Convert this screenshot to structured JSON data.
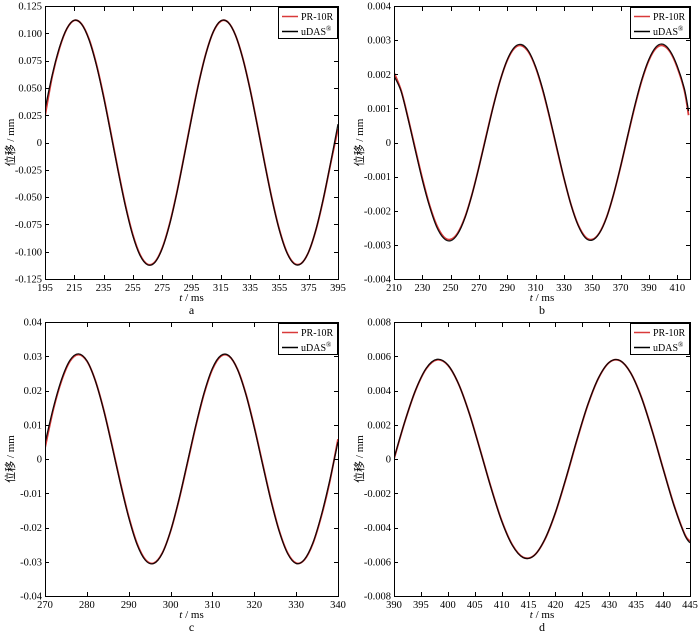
{
  "chart_data": [
    {
      "panel_label": "a",
      "type": "line",
      "xlabel": "t / ms",
      "ylabel": "位移 / mm",
      "xlim": [
        195,
        395
      ],
      "ylim": [
        -0.125,
        0.125
      ],
      "xticks": [
        195,
        215,
        235,
        255,
        275,
        295,
        315,
        335,
        355,
        375,
        395
      ],
      "xtick_labels": [
        "195",
        "215",
        "235",
        "255",
        "275",
        "295",
        "315",
        "335",
        "355",
        "375",
        "395"
      ],
      "yticks": [
        -0.125,
        -0.1,
        -0.075,
        -0.05,
        -0.025,
        0,
        0.025,
        0.05,
        0.075,
        0.1,
        0.125
      ],
      "ytick_labels": [
        "-0.125",
        "-0.100",
        "-0.075",
        "-0.050",
        "-0.025",
        "0",
        "0.025",
        "0.050",
        "0.075",
        "0.100",
        "0.125"
      ],
      "grid": false,
      "legend": "top-right",
      "x": [
        195,
        200,
        205,
        210,
        215,
        220,
        225,
        230,
        235,
        240,
        245,
        250,
        255,
        260,
        265,
        270,
        275,
        280,
        285,
        290,
        295,
        300,
        305,
        310,
        315,
        320,
        325,
        330,
        335,
        340,
        345,
        350,
        355,
        360,
        365,
        370,
        375,
        380,
        385,
        390,
        395
      ],
      "series": [
        {
          "name": "PR-10R",
          "color": "#d93a3a",
          "y": [
            0.024,
            0.061,
            0.0868,
            0.1043,
            0.1118,
            0.1085,
            0.0949,
            0.0721,
            0.0425,
            0.0087,
            -0.0259,
            -0.058,
            -0.0846,
            -0.103,
            -0.1115,
            -0.1094,
            -0.0967,
            -0.0747,
            -0.0457,
            -0.0122,
            0.0225,
            0.055,
            0.0822,
            0.1016,
            0.1111,
            0.1101,
            0.0984,
            0.0773,
            0.0488,
            0.0156,
            -0.0191,
            -0.0519,
            -0.0798,
            -0.1001,
            -0.1106,
            -0.1106,
            -0.1001,
            -0.0798,
            -0.0519,
            -0.0191,
            0.0125
          ]
        },
        {
          "name": "uDAS®",
          "color": "#000000",
          "y": [
            0.0305,
            0.0622,
            0.0876,
            0.1046,
            0.112,
            0.1083,
            0.0942,
            0.0712,
            0.0414,
            0.0076,
            -0.0268,
            -0.059,
            -0.0856,
            -0.1038,
            -0.112,
            -0.1098,
            -0.0972,
            -0.0754,
            -0.0462,
            -0.0126,
            0.0218,
            0.0546,
            0.082,
            0.1018,
            0.1114,
            0.11,
            0.0982,
            0.0768,
            0.0482,
            0.0148,
            -0.0198,
            -0.0526,
            -0.0804,
            -0.1006,
            -0.111,
            -0.1108,
            -0.1,
            -0.0794,
            -0.0512,
            -0.0182,
            0.0168
          ]
        }
      ]
    },
    {
      "panel_label": "b",
      "type": "line",
      "xlabel": "t / ms",
      "ylabel": "位移 / mm",
      "xlim": [
        210,
        419
      ],
      "ylim": [
        -0.004,
        0.004
      ],
      "xticks": [
        210,
        230,
        250,
        270,
        290,
        310,
        330,
        350,
        370,
        390,
        410
      ],
      "xtick_labels": [
        "210",
        "230",
        "250",
        "270",
        "290",
        "310",
        "330",
        "350",
        "370",
        "390",
        "410"
      ],
      "yticks": [
        -0.004,
        -0.003,
        -0.002,
        -0.001,
        0,
        0.001,
        0.002,
        0.003,
        0.004
      ],
      "ytick_labels": [
        "-0.004",
        "-0.003",
        "-0.002",
        "-0.001",
        "0",
        "0.001",
        "0.002",
        "0.003",
        "0.004"
      ],
      "grid": false,
      "legend": "top-right",
      "x": [
        210,
        215,
        220,
        225,
        230,
        235,
        240,
        245,
        250,
        255,
        260,
        265,
        270,
        275,
        280,
        285,
        290,
        295,
        300,
        305,
        310,
        315,
        320,
        325,
        330,
        335,
        340,
        345,
        350,
        355,
        360,
        365,
        370,
        375,
        380,
        385,
        390,
        395,
        400,
        405,
        410,
        415,
        418
      ],
      "series": [
        {
          "name": "PR-10R",
          "color": "#d93a3a",
          "y": [
            0.00205,
            0.00153,
            0.00071,
            -0.00018,
            -0.00105,
            -0.00182,
            -0.00241,
            -0.00276,
            -0.00284,
            -0.00265,
            -0.0022,
            -0.00153,
            -0.00071,
            0.00018,
            0.00105,
            0.00182,
            0.00241,
            0.00276,
            0.00284,
            0.00265,
            0.0022,
            0.00153,
            0.00071,
            -0.00018,
            -0.00105,
            -0.00182,
            -0.00241,
            -0.00276,
            -0.00284,
            -0.00265,
            -0.0022,
            -0.00153,
            -0.00071,
            0.00018,
            0.00105,
            0.00182,
            0.00241,
            0.00276,
            0.00284,
            0.00265,
            0.0022,
            0.00153,
            0.0008
          ]
        },
        {
          "name": "uDAS®",
          "color": "#000000",
          "y": [
            0.00195,
            0.0015,
            0.00068,
            -0.00022,
            -0.0011,
            -0.00186,
            -0.00246,
            -0.0028,
            -0.00288,
            -0.00268,
            -0.00222,
            -0.00154,
            -0.00072,
            0.00016,
            0.00104,
            0.00182,
            0.00243,
            0.00279,
            0.00287,
            0.00268,
            0.00222,
            0.00156,
            0.00073,
            -0.00016,
            -0.00104,
            -0.00183,
            -0.00243,
            -0.00279,
            -0.00286,
            -0.00266,
            -0.00221,
            -0.00152,
            -0.0007,
            0.0002,
            0.00108,
            0.00185,
            0.00244,
            0.0028,
            0.00288,
            0.00268,
            0.00224,
            0.00158,
            0.00092
          ]
        }
      ]
    },
    {
      "panel_label": "c",
      "type": "line",
      "xlabel": "t / ms",
      "ylabel": "位移 / mm",
      "xlim": [
        270,
        340
      ],
      "ylim": [
        -0.04,
        0.04
      ],
      "xticks": [
        270,
        280,
        290,
        300,
        310,
        320,
        330,
        340
      ],
      "xtick_labels": [
        "270",
        "280",
        "290",
        "300",
        "310",
        "320",
        "330",
        "340"
      ],
      "yticks": [
        -0.04,
        -0.03,
        -0.02,
        -0.01,
        0,
        0.01,
        0.02,
        0.03,
        0.04
      ],
      "ytick_labels": [
        "-0.04",
        "-0.03",
        "-0.02",
        "-0.01",
        "0",
        "0.01",
        "0.02",
        "0.03",
        "0.04"
      ],
      "grid": false,
      "legend": "top-right",
      "x": [
        270,
        272,
        274,
        276,
        278,
        280,
        282,
        284,
        286,
        288,
        290,
        292,
        294,
        296,
        298,
        300,
        302,
        304,
        306,
        308,
        310,
        312,
        314,
        316,
        318,
        320,
        322,
        324,
        326,
        328,
        330,
        332,
        334,
        336,
        338,
        340
      ],
      "series": [
        {
          "name": "PR-10R",
          "color": "#d93a3a",
          "y": [
            0.0032,
            0.0145,
            0.023,
            0.0286,
            0.0305,
            0.0286,
            0.023,
            0.0145,
            0.0041,
            -0.0068,
            -0.0168,
            -0.0247,
            -0.0294,
            -0.0304,
            -0.0275,
            -0.0211,
            -0.012,
            -0.0014,
            0.0094,
            0.019,
            0.0262,
            0.03,
            0.03,
            0.0262,
            0.019,
            0.0094,
            -0.0014,
            -0.012,
            -0.0211,
            -0.0275,
            -0.0304,
            -0.0294,
            -0.0247,
            -0.0168,
            -0.0068,
            0.0058
          ]
        },
        {
          "name": "uDAS®",
          "color": "#000000",
          "y": [
            0.0046,
            0.015,
            0.0234,
            0.0289,
            0.0307,
            0.0287,
            0.0229,
            0.0143,
            0.0038,
            -0.0071,
            -0.0171,
            -0.025,
            -0.0296,
            -0.0305,
            -0.0276,
            -0.021,
            -0.0118,
            -0.0011,
            0.0097,
            0.0193,
            0.0265,
            0.0302,
            0.0301,
            0.0261,
            0.0188,
            0.0091,
            -0.0017,
            -0.0123,
            -0.0213,
            -0.0277,
            -0.0305,
            -0.0293,
            -0.0245,
            -0.0165,
            -0.0064,
            0.005
          ]
        }
      ]
    },
    {
      "panel_label": "d",
      "type": "line",
      "xlabel": "t / ms",
      "ylabel": "位移 / mm",
      "xlim": [
        390,
        445
      ],
      "ylim": [
        -0.008,
        0.008
      ],
      "xticks": [
        390,
        395,
        400,
        405,
        410,
        415,
        420,
        425,
        430,
        435,
        440,
        445
      ],
      "xtick_labels": [
        "390",
        "395",
        "400",
        "405",
        "410",
        "415",
        "420",
        "425",
        "430",
        "435",
        "440",
        "445"
      ],
      "yticks": [
        -0.008,
        -0.006,
        -0.004,
        -0.002,
        0,
        0.002,
        0.004,
        0.006,
        0.008
      ],
      "ytick_labels": [
        "-0.008",
        "-0.006",
        "-0.004",
        "-0.002",
        "0",
        "0.002",
        "0.004",
        "0.006",
        "0.008"
      ],
      "grid": false,
      "legend": "top-right",
      "x": [
        390,
        392,
        394,
        396,
        398,
        400,
        402,
        404,
        406,
        408,
        410,
        412,
        414,
        416,
        418,
        420,
        422,
        424,
        426,
        428,
        430,
        432,
        434,
        436,
        438,
        440,
        442,
        444,
        445
      ],
      "series": [
        {
          "name": "PR-10R",
          "color": "#d93a3a",
          "y": [
            0.0,
            0.00216,
            0.004,
            0.00528,
            0.00579,
            0.00548,
            0.00438,
            0.00266,
            0.00055,
            -0.00163,
            -0.00359,
            -0.00502,
            -0.00574,
            -0.00564,
            -0.00472,
            -0.00314,
            -0.0011,
            0.0011,
            0.00314,
            0.00472,
            0.00564,
            0.00574,
            0.00502,
            0.00359,
            0.00163,
            -0.00055,
            -0.00266,
            -0.00438,
            -0.0048
          ]
        },
        {
          "name": "uDAS®",
          "color": "#000000",
          "y": [
            5e-05,
            0.00218,
            0.00402,
            0.00531,
            0.00582,
            0.0055,
            0.00438,
            0.00264,
            0.00052,
            -0.00166,
            -0.00362,
            -0.00505,
            -0.00576,
            -0.00565,
            -0.0047,
            -0.00311,
            -0.00106,
            0.00114,
            0.00317,
            0.00474,
            0.00565,
            0.00575,
            0.00501,
            0.00356,
            0.0016,
            -0.00058,
            -0.0027,
            -0.00442,
            -0.0049
          ]
        }
      ]
    }
  ]
}
